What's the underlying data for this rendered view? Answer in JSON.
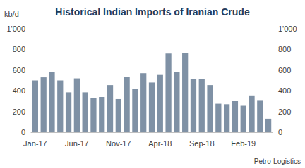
{
  "chart_data": {
    "type": "bar",
    "title": "Historical Indian Imports of Iranian Crude",
    "ylabel": "kb/d",
    "source": "Petro-Logistics",
    "categories": [
      "Jan-17",
      null,
      null,
      null,
      null,
      "Jun-17",
      null,
      null,
      null,
      null,
      "Nov-17",
      null,
      null,
      null,
      null,
      "Apr-18",
      null,
      null,
      null,
      null,
      "Sep-18",
      null,
      null,
      null,
      null,
      "Feb-19",
      null,
      null,
      null
    ],
    "values": [
      500,
      530,
      580,
      500,
      385,
      520,
      385,
      330,
      340,
      455,
      320,
      535,
      415,
      570,
      480,
      560,
      760,
      580,
      765,
      515,
      515,
      455,
      275,
      270,
      300,
      255,
      355,
      310,
      130
    ],
    "color": "#7f91a5",
    "ylim": [
      0,
      1000
    ],
    "yticks": [
      0,
      200,
      400,
      600,
      800,
      {
        "value": 1000,
        "label": "1'000"
      }
    ],
    "y2lim": [
      0,
      1000
    ],
    "y2ticks": [
      0,
      200,
      400,
      600,
      800,
      {
        "value": 1000,
        "label": "1'000"
      }
    ],
    "grid": false
  }
}
